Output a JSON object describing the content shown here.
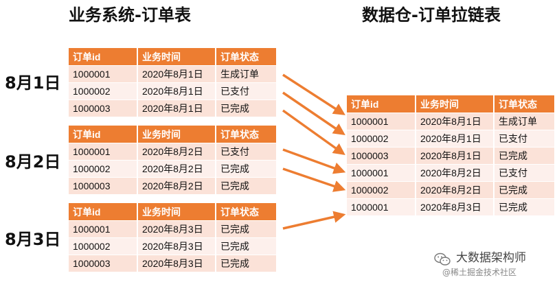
{
  "left_title": "业务系统-订单表",
  "right_title": "数据仓-订单拉链表",
  "columns": [
    "订单id",
    "业务时间",
    "订单状态"
  ],
  "snapshots": [
    {
      "date_label": "8月1日",
      "rows": [
        [
          "1000001",
          "2020年8月1日",
          "生成订单"
        ],
        [
          "1000002",
          "2020年8月1日",
          "已支付"
        ],
        [
          "1000003",
          "2020年8月1日",
          "已完成"
        ]
      ]
    },
    {
      "date_label": "8月2日",
      "rows": [
        [
          "1000001",
          "2020年8月2日",
          "已支付"
        ],
        [
          "1000002",
          "2020年8月2日",
          "已完成"
        ],
        [
          "1000003",
          "2020年8月2日",
          "已完成"
        ]
      ]
    },
    {
      "date_label": "8月3日",
      "rows": [
        [
          "1000001",
          "2020年8月3日",
          "已完成"
        ],
        [
          "1000002",
          "2020年8月3日",
          "已完成"
        ],
        [
          "1000003",
          "2020年8月3日",
          "已完成"
        ]
      ]
    }
  ],
  "zipper_rows": [
    [
      "1000001",
      "2020年8月1日",
      "生成订单"
    ],
    [
      "1000002",
      "2020年8月1日",
      "已支付"
    ],
    [
      "1000003",
      "2020年8月1日",
      "已完成"
    ],
    [
      "1000001",
      "2020年8月2日",
      "已支付"
    ],
    [
      "1000002",
      "2020年8月2日",
      "已完成"
    ],
    [
      "1000001",
      "2020年8月3日",
      "已完成"
    ]
  ],
  "colors": {
    "header": "#ed7d31",
    "row_odd": "#fbe2d8",
    "row_even": "#fdf0ec",
    "arrow": "#ed7d31"
  },
  "watermark": {
    "icon": "wechat-icon",
    "title": "大数据架构师",
    "subtitle": "@稀土掘金技术社区"
  }
}
